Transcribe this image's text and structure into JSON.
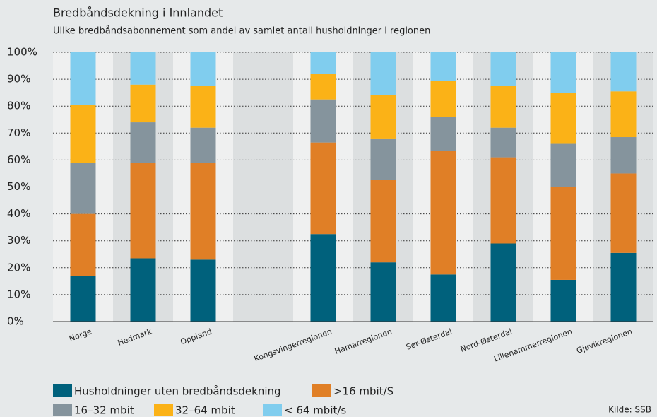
{
  "chart_data": {
    "type": "stacked_bar",
    "title": "Bredbåndsdekning i Innlandet",
    "subtitle": "Ulike bredbåndsabonnement som andel av samlet antall husholdninger i regionen",
    "source": "Kilde: SSB",
    "categories": [
      "Norge",
      "Hedmark",
      "Oppland",
      null,
      "Kongsvingerregionen",
      "Hamarregionen",
      "Sør-Østerdal",
      "Nord-Østerdal",
      "Lillehammerregionen",
      "Gjøvikregionen"
    ],
    "series": [
      {
        "name": "Husholdninger uten bredbåndsdekning",
        "color": "#00617c",
        "values": [
          17,
          23.5,
          23,
          null,
          32.5,
          22,
          17.5,
          29,
          15.5,
          25.5
        ]
      },
      {
        "name": ">16 mbit/S",
        "color": "#e07f26",
        "values": [
          23,
          35.5,
          36,
          null,
          34,
          30.5,
          46,
          32,
          34.5,
          29.5
        ]
      },
      {
        "name": "16–32 mbit",
        "color": "#85949d",
        "values": [
          19,
          15,
          13,
          null,
          16,
          15.5,
          12.5,
          11,
          16,
          13.5
        ]
      },
      {
        "name": "32–64 mbit",
        "color": "#fbb217",
        "values": [
          21.5,
          14,
          15.5,
          null,
          9.5,
          16,
          13.5,
          15.5,
          19,
          17
        ]
      },
      {
        "name": "< 64 mbit/s",
        "color": "#80cdee",
        "values": [
          19.5,
          12,
          12.5,
          null,
          8,
          16,
          10.5,
          12.5,
          15,
          14.5
        ]
      }
    ],
    "ylim": [
      0,
      100
    ],
    "yticks": [
      {
        "value": 0,
        "label": "0%"
      },
      {
        "value": 10,
        "label": "10%"
      },
      {
        "value": 20,
        "label": "20%"
      },
      {
        "value": 30,
        "label": "30%"
      },
      {
        "value": 40,
        "label": "40%"
      },
      {
        "value": 50,
        "label": "50%"
      },
      {
        "value": 60,
        "label": "60%"
      },
      {
        "value": 70,
        "label": "70%"
      },
      {
        "value": 80,
        "label": "80%"
      },
      {
        "value": 90,
        "label": "90%"
      },
      {
        "value": 100,
        "label": "100%"
      }
    ],
    "grid": true
  }
}
